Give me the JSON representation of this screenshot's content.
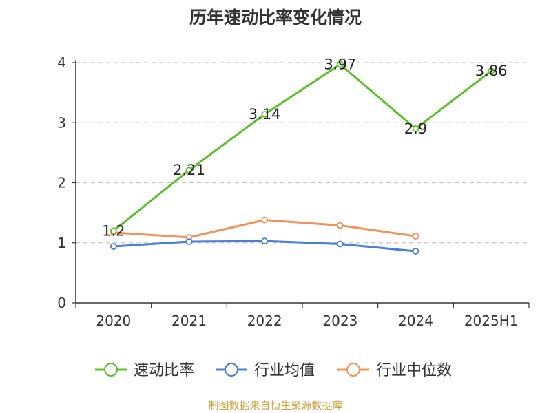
{
  "chart_data": {
    "type": "line",
    "title": "历年速动比率变化情况",
    "categories": [
      "2020",
      "2021",
      "2022",
      "2023",
      "2024",
      "2025H1"
    ],
    "yticks": [
      0,
      1,
      2,
      3,
      4
    ],
    "ylim": [
      0,
      4
    ],
    "grid": true,
    "legend_position": "bottom",
    "series": [
      {
        "name": "速动比率",
        "color": "#5cbf2a",
        "values": [
          1.2,
          2.21,
          3.14,
          3.97,
          2.9,
          3.86
        ],
        "labels": [
          "1.2",
          "2.21",
          "3.14",
          "3.97",
          "2.9",
          "3.86"
        ]
      },
      {
        "name": "行业均值",
        "color": "#4a7fd8",
        "values": [
          0.94,
          1.02,
          1.03,
          0.98,
          0.86,
          null
        ]
      },
      {
        "name": "行业中位数",
        "color": "#f5905a",
        "values": [
          1.17,
          1.09,
          1.38,
          1.29,
          1.11,
          null
        ]
      }
    ]
  },
  "footer": {
    "source": "制图数据来自恒生聚源数据库"
  }
}
